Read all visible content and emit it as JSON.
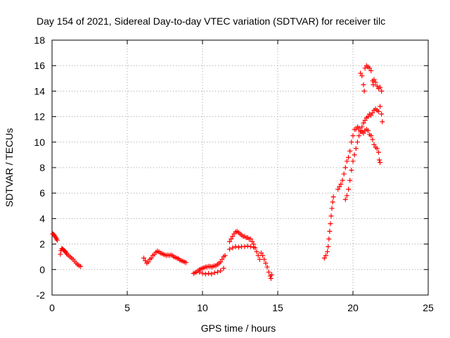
{
  "chart_data": {
    "type": "scatter",
    "title": "Day 154 of 2021, Sidereal Day-to-day VTEC variation (SDTVAR) for receiver tilc",
    "xlabel": "GPS time / hours",
    "ylabel": "SDTVAR / TECUs",
    "xlim": [
      0,
      25
    ],
    "ylim": [
      -2,
      18
    ],
    "xticks": [
      0,
      5,
      10,
      15,
      20,
      25
    ],
    "yticks": [
      -2,
      0,
      2,
      4,
      6,
      8,
      10,
      12,
      14,
      16,
      18
    ],
    "grid": true,
    "marker": "+",
    "color": "#ff0000",
    "series": [
      {
        "name": "SDTVAR",
        "points": [
          [
            0.05,
            2.8
          ],
          [
            0.1,
            2.75
          ],
          [
            0.15,
            2.7
          ],
          [
            0.2,
            2.6
          ],
          [
            0.25,
            2.5
          ],
          [
            0.3,
            2.4
          ],
          [
            0.35,
            2.3
          ],
          [
            0.55,
            1.2
          ],
          [
            0.6,
            1.5
          ],
          [
            0.65,
            1.65
          ],
          [
            0.7,
            1.6
          ],
          [
            0.75,
            1.55
          ],
          [
            0.8,
            1.5
          ],
          [
            0.85,
            1.45
          ],
          [
            0.9,
            1.4
          ],
          [
            0.95,
            1.3
          ],
          [
            1.0,
            1.2
          ],
          [
            1.1,
            1.1
          ],
          [
            1.2,
            1.0
          ],
          [
            1.3,
            0.9
          ],
          [
            1.4,
            0.8
          ],
          [
            1.5,
            0.65
          ],
          [
            1.6,
            0.5
          ],
          [
            1.7,
            0.4
          ],
          [
            1.8,
            0.3
          ],
          [
            1.9,
            0.25
          ],
          [
            6.1,
            0.9
          ],
          [
            6.2,
            0.7
          ],
          [
            6.3,
            0.5
          ],
          [
            6.4,
            0.6
          ],
          [
            6.5,
            0.8
          ],
          [
            6.6,
            0.9
          ],
          [
            6.7,
            1.1
          ],
          [
            6.8,
            1.2
          ],
          [
            6.9,
            1.35
          ],
          [
            7.0,
            1.45
          ],
          [
            7.1,
            1.4
          ],
          [
            7.2,
            1.3
          ],
          [
            7.3,
            1.25
          ],
          [
            7.4,
            1.2
          ],
          [
            7.5,
            1.15
          ],
          [
            7.6,
            1.1
          ],
          [
            7.7,
            1.15
          ],
          [
            7.8,
            1.1
          ],
          [
            7.9,
            1.15
          ],
          [
            8.0,
            1.1
          ],
          [
            8.1,
            1.0
          ],
          [
            8.2,
            0.95
          ],
          [
            8.3,
            0.9
          ],
          [
            8.4,
            0.85
          ],
          [
            8.5,
            0.75
          ],
          [
            8.6,
            0.7
          ],
          [
            8.7,
            0.65
          ],
          [
            8.8,
            0.6
          ],
          [
            8.9,
            0.55
          ],
          [
            9.4,
            -0.3
          ],
          [
            9.5,
            -0.25
          ],
          [
            9.6,
            -0.2
          ],
          [
            9.7,
            -0.1
          ],
          [
            9.8,
            0.0
          ],
          [
            9.9,
            0.05
          ],
          [
            10.0,
            0.1
          ],
          [
            10.1,
            0.15
          ],
          [
            10.2,
            0.2
          ],
          [
            10.3,
            0.2
          ],
          [
            10.4,
            0.25
          ],
          [
            10.5,
            0.25
          ],
          [
            10.6,
            0.2
          ],
          [
            10.7,
            0.25
          ],
          [
            10.8,
            0.3
          ],
          [
            10.9,
            0.3
          ],
          [
            11.0,
            0.4
          ],
          [
            11.1,
            0.5
          ],
          [
            11.2,
            0.6
          ],
          [
            11.3,
            0.8
          ],
          [
            11.4,
            1.0
          ],
          [
            11.5,
            1.1
          ],
          [
            9.8,
            -0.2
          ],
          [
            10.0,
            -0.3
          ],
          [
            10.2,
            -0.35
          ],
          [
            10.4,
            -0.3
          ],
          [
            10.6,
            -0.35
          ],
          [
            10.8,
            -0.25
          ],
          [
            11.0,
            -0.2
          ],
          [
            11.2,
            -0.1
          ],
          [
            11.4,
            0.1
          ],
          [
            11.8,
            2.2
          ],
          [
            11.9,
            2.4
          ],
          [
            12.0,
            2.6
          ],
          [
            12.1,
            2.8
          ],
          [
            12.2,
            2.95
          ],
          [
            12.3,
            3.0
          ],
          [
            12.4,
            2.9
          ],
          [
            12.5,
            2.8
          ],
          [
            12.6,
            2.7
          ],
          [
            12.7,
            2.6
          ],
          [
            12.8,
            2.6
          ],
          [
            12.9,
            2.5
          ],
          [
            13.0,
            2.5
          ],
          [
            13.1,
            2.4
          ],
          [
            13.2,
            2.4
          ],
          [
            13.3,
            2.2
          ],
          [
            13.4,
            2.0
          ],
          [
            13.5,
            1.7
          ],
          [
            13.6,
            1.4
          ],
          [
            13.7,
            1.1
          ],
          [
            13.8,
            0.8
          ],
          [
            11.8,
            1.6
          ],
          [
            12.0,
            1.7
          ],
          [
            12.2,
            1.8
          ],
          [
            12.4,
            1.75
          ],
          [
            12.6,
            1.8
          ],
          [
            12.8,
            1.8
          ],
          [
            13.0,
            1.85
          ],
          [
            13.2,
            1.8
          ],
          [
            13.4,
            1.75
          ],
          [
            13.9,
            1.3
          ],
          [
            14.0,
            1.1
          ],
          [
            14.1,
            0.8
          ],
          [
            14.2,
            0.5
          ],
          [
            14.3,
            0.2
          ],
          [
            14.4,
            -0.2
          ],
          [
            14.5,
            -0.5
          ],
          [
            14.55,
            -0.7
          ],
          [
            14.6,
            -0.4
          ],
          [
            18.1,
            0.9
          ],
          [
            18.2,
            1.1
          ],
          [
            18.3,
            1.4
          ],
          [
            18.35,
            1.8
          ],
          [
            18.4,
            2.4
          ],
          [
            18.45,
            3.0
          ],
          [
            18.5,
            3.6
          ],
          [
            18.55,
            4.2
          ],
          [
            18.6,
            4.8
          ],
          [
            18.65,
            5.3
          ],
          [
            18.7,
            5.7
          ],
          [
            19.0,
            6.3
          ],
          [
            19.1,
            6.5
          ],
          [
            19.2,
            6.7
          ],
          [
            19.3,
            7.0
          ],
          [
            19.4,
            7.5
          ],
          [
            19.5,
            8.0
          ],
          [
            19.6,
            8.5
          ],
          [
            19.7,
            8.8
          ],
          [
            19.8,
            9.3
          ],
          [
            19.9,
            10.0
          ],
          [
            20.0,
            10.5
          ],
          [
            20.1,
            11.0
          ],
          [
            20.2,
            11.0
          ],
          [
            20.3,
            11.2
          ],
          [
            20.4,
            11.1
          ],
          [
            20.5,
            10.9
          ],
          [
            20.6,
            10.8
          ],
          [
            20.7,
            10.7
          ],
          [
            20.8,
            10.9
          ],
          [
            20.9,
            11.0
          ],
          [
            21.0,
            10.9
          ],
          [
            21.1,
            10.6
          ],
          [
            21.2,
            10.5
          ],
          [
            21.3,
            10.2
          ],
          [
            21.4,
            9.8
          ],
          [
            21.5,
            9.6
          ],
          [
            21.6,
            9.5
          ],
          [
            21.7,
            9.2
          ],
          [
            21.75,
            8.6
          ],
          [
            21.8,
            8.4
          ],
          [
            19.5,
            5.5
          ],
          [
            19.6,
            5.8
          ],
          [
            19.7,
            6.3
          ],
          [
            19.8,
            7.0
          ],
          [
            19.9,
            7.8
          ],
          [
            20.0,
            8.5
          ],
          [
            20.1,
            9.0
          ],
          [
            20.2,
            9.5
          ],
          [
            20.3,
            10.0
          ],
          [
            20.4,
            10.5
          ],
          [
            20.5,
            10.8
          ],
          [
            20.6,
            11.2
          ],
          [
            20.7,
            11.5
          ],
          [
            20.8,
            11.7
          ],
          [
            20.9,
            11.9
          ],
          [
            21.0,
            12.0
          ],
          [
            21.1,
            12.2
          ],
          [
            21.2,
            12.1
          ],
          [
            21.3,
            12.3
          ],
          [
            21.4,
            12.5
          ],
          [
            21.5,
            12.6
          ],
          [
            21.6,
            12.5
          ],
          [
            21.7,
            12.4
          ],
          [
            21.8,
            12.8
          ],
          [
            21.9,
            12.2
          ],
          [
            21.95,
            11.6
          ],
          [
            20.5,
            15.4
          ],
          [
            20.6,
            15.2
          ],
          [
            20.7,
            14.5
          ],
          [
            20.75,
            14.0
          ],
          [
            20.8,
            15.8
          ],
          [
            20.9,
            16.0
          ],
          [
            21.0,
            15.9
          ],
          [
            21.1,
            15.8
          ],
          [
            21.2,
            15.6
          ],
          [
            21.3,
            14.8
          ],
          [
            21.35,
            14.5
          ],
          [
            21.4,
            14.9
          ],
          [
            21.5,
            14.7
          ],
          [
            21.6,
            14.4
          ],
          [
            21.7,
            14.2
          ],
          [
            21.8,
            14.3
          ],
          [
            21.9,
            14.0
          ]
        ]
      }
    ]
  }
}
